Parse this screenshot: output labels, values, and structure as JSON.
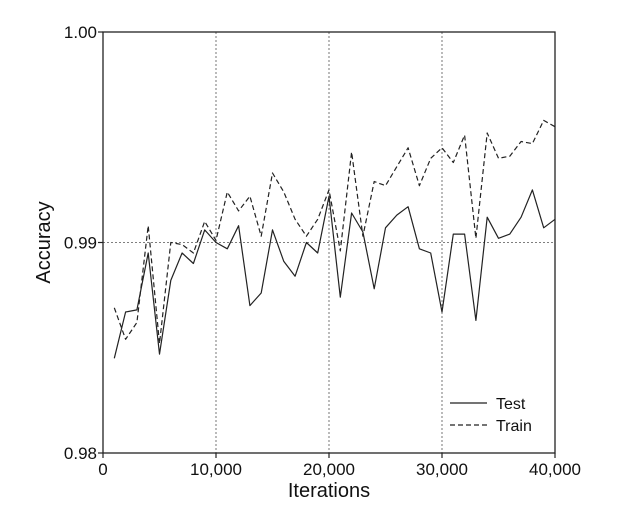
{
  "chart_data": {
    "type": "line",
    "xlabel": "Iterations",
    "ylabel": "Accuracy",
    "xlim": [
      0,
      40000
    ],
    "ylim": [
      0.98,
      1.0
    ],
    "x_ticks": [
      {
        "value": 0,
        "label": "0"
      },
      {
        "value": 10000,
        "label": "10,000"
      },
      {
        "value": 20000,
        "label": "20,000"
      },
      {
        "value": 30000,
        "label": "30,000"
      },
      {
        "value": 40000,
        "label": "40,000"
      }
    ],
    "y_ticks": [
      {
        "value": 0.98,
        "label": "0.98"
      },
      {
        "value": 0.99,
        "label": "0.99"
      },
      {
        "value": 1.0,
        "label": "1.00"
      }
    ],
    "grid": "dotted lines at interior ticks",
    "legend_position": "bottom-right",
    "x": [
      1000,
      2000,
      3000,
      4000,
      5000,
      6000,
      7000,
      8000,
      9000,
      10000,
      11000,
      12000,
      13000,
      14000,
      15000,
      16000,
      17000,
      18000,
      19000,
      20000,
      21000,
      22000,
      23000,
      24000,
      25000,
      26000,
      27000,
      28000,
      29000,
      30000,
      31000,
      32000,
      33000,
      34000,
      35000,
      36000,
      37000,
      38000,
      39000,
      40000
    ],
    "series": [
      {
        "name": "Test",
        "style": "solid",
        "color": "#222222",
        "values": [
          0.9845,
          0.9867,
          0.9868,
          0.9895,
          0.9847,
          0.9882,
          0.9895,
          0.989,
          0.9906,
          0.99,
          0.9897,
          0.9908,
          0.987,
          0.9876,
          0.9906,
          0.9891,
          0.9884,
          0.99,
          0.9895,
          0.9922,
          0.9874,
          0.9914,
          0.9905,
          0.9878,
          0.9907,
          0.9913,
          0.9917,
          0.9897,
          0.9895,
          0.9867,
          0.9904,
          0.9904,
          0.9863,
          0.9912,
          0.9902,
          0.9904,
          0.9912,
          0.9925,
          0.9907,
          0.9911
        ]
      },
      {
        "name": "Train",
        "style": "dashed",
        "color": "#222222",
        "values": [
          0.9869,
          0.9854,
          0.9862,
          0.9908,
          0.9852,
          0.99,
          0.9899,
          0.9895,
          0.991,
          0.9901,
          0.9924,
          0.9915,
          0.9922,
          0.9903,
          0.9933,
          0.9924,
          0.9911,
          0.9903,
          0.9911,
          0.9925,
          0.9896,
          0.9943,
          0.9903,
          0.9929,
          0.9927,
          0.9936,
          0.9945,
          0.9927,
          0.994,
          0.9945,
          0.9938,
          0.9951,
          0.9902,
          0.9952,
          0.994,
          0.9941,
          0.9948,
          0.9947,
          0.9958,
          0.9955
        ]
      }
    ]
  }
}
